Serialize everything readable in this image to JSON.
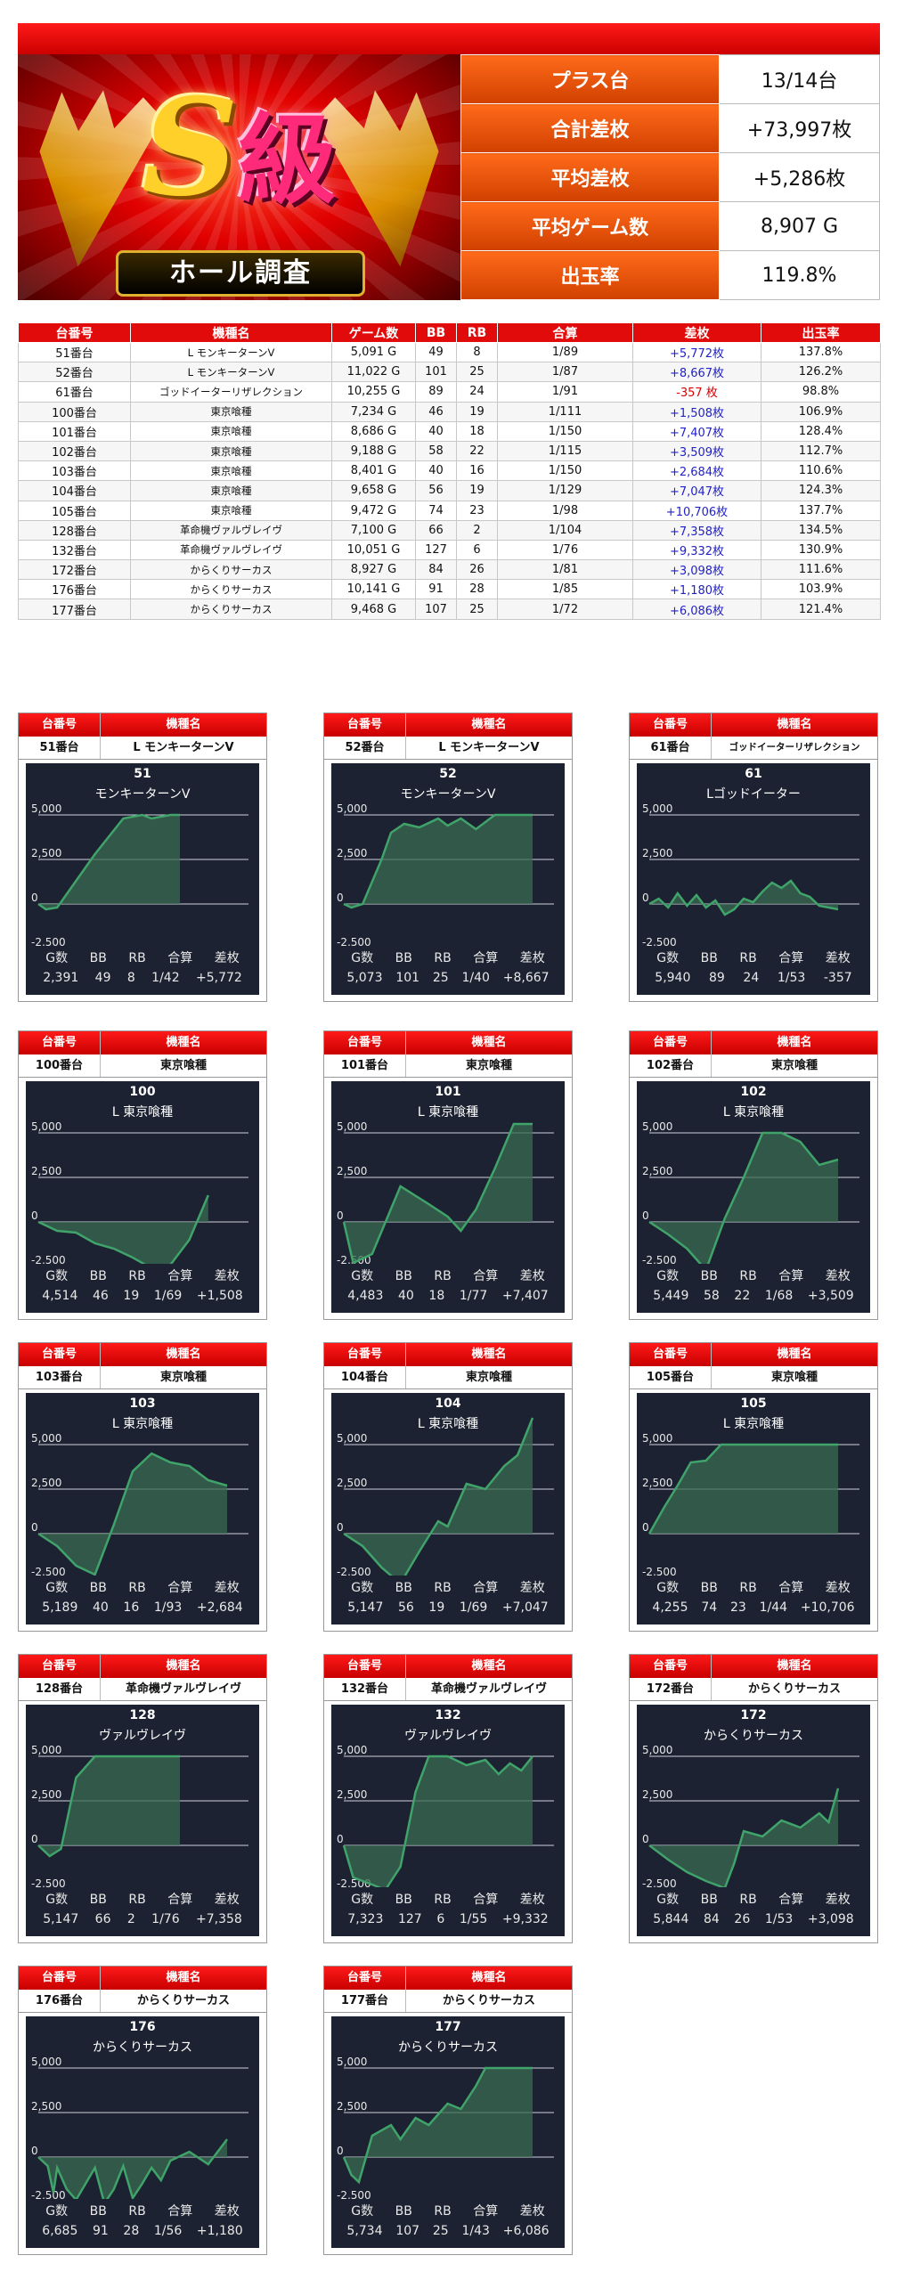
{
  "banner": {
    "s_letter": "S",
    "kyu": "級",
    "ribbon": "ホール調査"
  },
  "summary": [
    {
      "label": "プラス台",
      "value": "13/14台"
    },
    {
      "label": "合計差枚",
      "value": "+73,997枚"
    },
    {
      "label": "平均差枚",
      "value": "+5,286枚"
    },
    {
      "label": "平均ゲーム数",
      "value": "8,907 G"
    },
    {
      "label": "出玉率",
      "value": "119.8%"
    }
  ],
  "table": {
    "headers": [
      "台番号",
      "機種名",
      "ゲーム数",
      "BB",
      "RB",
      "合算",
      "差枚",
      "出玉率"
    ],
    "rows": [
      [
        "51番台",
        "L モンキーターンV",
        "5,091 G",
        "49",
        "8",
        "1/89",
        "+5,772枚",
        "137.8%"
      ],
      [
        "52番台",
        "L モンキーターンV",
        "11,022 G",
        "101",
        "25",
        "1/87",
        "+8,667枚",
        "126.2%"
      ],
      [
        "61番台",
        "ゴッドイーターリザレクション",
        "10,255 G",
        "89",
        "24",
        "1/91",
        "-357 枚",
        "98.8%"
      ],
      [
        "100番台",
        "東京喰種",
        "7,234 G",
        "46",
        "19",
        "1/111",
        "+1,508枚",
        "106.9%"
      ],
      [
        "101番台",
        "東京喰種",
        "8,686 G",
        "40",
        "18",
        "1/150",
        "+7,407枚",
        "128.4%"
      ],
      [
        "102番台",
        "東京喰種",
        "9,188 G",
        "58",
        "22",
        "1/115",
        "+3,509枚",
        "112.7%"
      ],
      [
        "103番台",
        "東京喰種",
        "8,401 G",
        "40",
        "16",
        "1/150",
        "+2,684枚",
        "110.6%"
      ],
      [
        "104番台",
        "東京喰種",
        "9,658 G",
        "56",
        "19",
        "1/129",
        "+7,047枚",
        "124.3%"
      ],
      [
        "105番台",
        "東京喰種",
        "9,472 G",
        "74",
        "23",
        "1/98",
        "+10,706枚",
        "137.7%"
      ],
      [
        "128番台",
        "革命機ヴァルヴレイヴ",
        "7,100 G",
        "66",
        "2",
        "1/104",
        "+7,358枚",
        "134.5%"
      ],
      [
        "132番台",
        "革命機ヴァルヴレイヴ",
        "10,051 G",
        "127",
        "6",
        "1/76",
        "+9,332枚",
        "130.9%"
      ],
      [
        "172番台",
        "からくりサーカス",
        "8,927 G",
        "84",
        "26",
        "1/81",
        "+3,098枚",
        "111.6%"
      ],
      [
        "176番台",
        "からくりサーカス",
        "10,141 G",
        "91",
        "28",
        "1/85",
        "+1,180枚",
        "103.9%"
      ],
      [
        "177番台",
        "からくりサーカス",
        "9,468 G",
        "107",
        "25",
        "1/72",
        "+6,086枚",
        "121.4%"
      ]
    ]
  },
  "card_labels": {
    "number": "台番号",
    "machine": "機種名"
  },
  "graph_labels": [
    "G数",
    "BB",
    "RB",
    "合算",
    "差枚"
  ],
  "graph_axis": [
    "5,000",
    "2,500",
    "0",
    "-2,500"
  ],
  "colors": {
    "red": "#e20b0b",
    "panel": "#1c2231",
    "line": "#3fa36a",
    "fill": "#3a6b52",
    "positive": "#2222cc",
    "negative": "#dd0000"
  },
  "cards": [
    {
      "num": "51番台",
      "machine": "L モンキーターンV",
      "gnum": "51",
      "gname": "モンキーターンV",
      "g": "2,391",
      "bb": "49",
      "rb": "8",
      "total": "1/42",
      "diff": "+5,772",
      "series": [
        [
          0,
          0
        ],
        [
          0.04,
          -300
        ],
        [
          0.1,
          -200
        ],
        [
          0.3,
          2800
        ],
        [
          0.45,
          4800
        ],
        [
          0.55,
          5000
        ],
        [
          0.6,
          4800
        ],
        [
          0.7,
          5000
        ],
        [
          0.75,
          5000
        ]
      ]
    },
    {
      "num": "52番台",
      "machine": "L モンキーターンV",
      "gnum": "52",
      "gname": "モンキーターンV",
      "g": "5,073",
      "bb": "101",
      "rb": "25",
      "total": "1/40",
      "diff": "+8,667",
      "series": [
        [
          0,
          0
        ],
        [
          0.04,
          -200
        ],
        [
          0.1,
          0
        ],
        [
          0.2,
          2500
        ],
        [
          0.25,
          4000
        ],
        [
          0.32,
          4500
        ],
        [
          0.4,
          4300
        ],
        [
          0.5,
          4800
        ],
        [
          0.55,
          4400
        ],
        [
          0.62,
          4800
        ],
        [
          0.7,
          4200
        ],
        [
          0.8,
          5000
        ],
        [
          0.9,
          5000
        ],
        [
          1,
          5000
        ]
      ]
    },
    {
      "num": "61番台",
      "machine": "ゴッドイーターリザレクション",
      "gnum": "61",
      "gname": "Lゴッドイーター",
      "g": "5,940",
      "bb": "89",
      "rb": "24",
      "total": "1/53",
      "diff": "-357",
      "series": [
        [
          0,
          0
        ],
        [
          0.05,
          300
        ],
        [
          0.1,
          -200
        ],
        [
          0.15,
          600
        ],
        [
          0.2,
          -100
        ],
        [
          0.25,
          500
        ],
        [
          0.3,
          -200
        ],
        [
          0.35,
          200
        ],
        [
          0.4,
          -600
        ],
        [
          0.45,
          -300
        ],
        [
          0.5,
          300
        ],
        [
          0.55,
          100
        ],
        [
          0.6,
          700
        ],
        [
          0.65,
          1200
        ],
        [
          0.7,
          900
        ],
        [
          0.75,
          1300
        ],
        [
          0.8,
          600
        ],
        [
          0.85,
          400
        ],
        [
          0.9,
          -100
        ],
        [
          1,
          -300
        ]
      ]
    },
    {
      "num": "100番台",
      "machine": "東京喰種",
      "gnum": "100",
      "gname": "L 東京喰種",
      "g": "4,514",
      "bb": "46",
      "rb": "19",
      "total": "1/69",
      "diff": "+1,508",
      "series": [
        [
          0,
          0
        ],
        [
          0.1,
          -500
        ],
        [
          0.2,
          -600
        ],
        [
          0.3,
          -1200
        ],
        [
          0.4,
          -1500
        ],
        [
          0.5,
          -2000
        ],
        [
          0.6,
          -2600
        ],
        [
          0.7,
          -2400
        ],
        [
          0.8,
          -1000
        ],
        [
          0.9,
          1500
        ]
      ]
    },
    {
      "num": "101番台",
      "machine": "東京喰種",
      "gnum": "101",
      "gname": "L 東京喰種",
      "g": "4,483",
      "bb": "40",
      "rb": "18",
      "total": "1/77",
      "diff": "+7,407",
      "series": [
        [
          0,
          0
        ],
        [
          0.05,
          -2300
        ],
        [
          0.15,
          -1800
        ],
        [
          0.3,
          2000
        ],
        [
          0.45,
          1000
        ],
        [
          0.55,
          300
        ],
        [
          0.62,
          -500
        ],
        [
          0.7,
          700
        ],
        [
          0.8,
          3000
        ],
        [
          0.9,
          5500
        ],
        [
          1,
          5500
        ]
      ]
    },
    {
      "num": "102番台",
      "machine": "東京喰種",
      "gnum": "102",
      "gname": "L 東京喰種",
      "g": "5,449",
      "bb": "58",
      "rb": "22",
      "total": "1/68",
      "diff": "+3,509",
      "series": [
        [
          0,
          0
        ],
        [
          0.1,
          -700
        ],
        [
          0.2,
          -1500
        ],
        [
          0.3,
          -2700
        ],
        [
          0.4,
          200
        ],
        [
          0.5,
          2500
        ],
        [
          0.6,
          5000
        ],
        [
          0.7,
          5000
        ],
        [
          0.8,
          4500
        ],
        [
          0.9,
          3200
        ],
        [
          1,
          3500
        ]
      ]
    },
    {
      "num": "103番台",
      "machine": "東京喰種",
      "gnum": "103",
      "gname": "L 東京喰種",
      "g": "5,189",
      "bb": "40",
      "rb": "16",
      "total": "1/93",
      "diff": "+2,684",
      "series": [
        [
          0,
          0
        ],
        [
          0.1,
          -700
        ],
        [
          0.2,
          -1800
        ],
        [
          0.3,
          -2300
        ],
        [
          0.4,
          500
        ],
        [
          0.5,
          3500
        ],
        [
          0.6,
          4500
        ],
        [
          0.7,
          4000
        ],
        [
          0.8,
          3800
        ],
        [
          0.9,
          3000
        ],
        [
          1,
          2700
        ]
      ]
    },
    {
      "num": "104番台",
      "machine": "東京喰種",
      "gnum": "104",
      "gname": "L 東京喰種",
      "g": "5,147",
      "bb": "56",
      "rb": "19",
      "total": "1/69",
      "diff": "+7,047",
      "series": [
        [
          0,
          0
        ],
        [
          0.1,
          -700
        ],
        [
          0.2,
          -1900
        ],
        [
          0.3,
          -2800
        ],
        [
          0.4,
          -1000
        ],
        [
          0.5,
          700
        ],
        [
          0.55,
          400
        ],
        [
          0.65,
          2800
        ],
        [
          0.75,
          2500
        ],
        [
          0.85,
          3800
        ],
        [
          0.92,
          4400
        ],
        [
          1,
          6500
        ]
      ]
    },
    {
      "num": "105番台",
      "machine": "東京喰種",
      "gnum": "105",
      "gname": "L 東京喰種",
      "g": "4,255",
      "bb": "74",
      "rb": "23",
      "total": "1/44",
      "diff": "+10,706",
      "series": [
        [
          0,
          0
        ],
        [
          0.08,
          1500
        ],
        [
          0.15,
          2700
        ],
        [
          0.22,
          4000
        ],
        [
          0.3,
          4100
        ],
        [
          0.38,
          5000
        ],
        [
          0.5,
          5000
        ],
        [
          0.7,
          5000
        ],
        [
          1,
          5000
        ]
      ]
    },
    {
      "num": "128番台",
      "machine": "革命機ヴァルヴレイヴ",
      "gnum": "128",
      "gname": "ヴァルヴレイヴ",
      "g": "5,147",
      "bb": "66",
      "rb": "2",
      "total": "1/76",
      "diff": "+7,358",
      "series": [
        [
          0,
          0
        ],
        [
          0.06,
          -600
        ],
        [
          0.12,
          -200
        ],
        [
          0.2,
          3800
        ],
        [
          0.3,
          5000
        ],
        [
          0.5,
          5000
        ],
        [
          0.75,
          5000
        ]
      ]
    },
    {
      "num": "132番台",
      "machine": "革命機ヴァルヴレイヴ",
      "gnum": "132",
      "gname": "ヴァルヴレイヴ",
      "g": "7,323",
      "bb": "127",
      "rb": "6",
      "total": "1/55",
      "diff": "+9,332",
      "series": [
        [
          0,
          0
        ],
        [
          0.05,
          -1800
        ],
        [
          0.15,
          -2200
        ],
        [
          0.22,
          -2500
        ],
        [
          0.3,
          -1200
        ],
        [
          0.38,
          3000
        ],
        [
          0.45,
          5000
        ],
        [
          0.55,
          5000
        ],
        [
          0.65,
          4500
        ],
        [
          0.75,
          4800
        ],
        [
          0.82,
          4000
        ],
        [
          0.88,
          4600
        ],
        [
          0.94,
          4200
        ],
        [
          1,
          5000
        ]
      ]
    },
    {
      "num": "172番台",
      "machine": "からくりサーカス",
      "gnum": "172",
      "gname": "からくりサーカス",
      "g": "5,844",
      "bb": "84",
      "rb": "26",
      "total": "1/53",
      "diff": "+3,098",
      "series": [
        [
          0,
          0
        ],
        [
          0.1,
          -800
        ],
        [
          0.2,
          -1500
        ],
        [
          0.3,
          -2000
        ],
        [
          0.4,
          -2400
        ],
        [
          0.45,
          -1000
        ],
        [
          0.5,
          800
        ],
        [
          0.6,
          500
        ],
        [
          0.7,
          1400
        ],
        [
          0.8,
          1000
        ],
        [
          0.9,
          1800
        ],
        [
          0.95,
          1300
        ],
        [
          1,
          3200
        ]
      ]
    },
    {
      "num": "176番台",
      "machine": "からくりサーカス",
      "gnum": "176",
      "gname": "からくりサーカス",
      "g": "6,685",
      "bb": "91",
      "rb": "28",
      "total": "1/56",
      "diff": "+1,180",
      "series": [
        [
          0,
          0
        ],
        [
          0.05,
          -500
        ],
        [
          0.08,
          -2000
        ],
        [
          0.1,
          -600
        ],
        [
          0.15,
          -1800
        ],
        [
          0.2,
          -2400
        ],
        [
          0.25,
          -1500
        ],
        [
          0.3,
          -600
        ],
        [
          0.35,
          -2600
        ],
        [
          0.4,
          -1800
        ],
        [
          0.45,
          -500
        ],
        [
          0.5,
          -2300
        ],
        [
          0.55,
          -1500
        ],
        [
          0.6,
          -600
        ],
        [
          0.65,
          -1300
        ],
        [
          0.7,
          -200
        ],
        [
          0.8,
          300
        ],
        [
          0.9,
          -400
        ],
        [
          1,
          1000
        ]
      ]
    },
    {
      "num": "177番台",
      "machine": "からくりサーカス",
      "gnum": "177",
      "gname": "からくりサーカス",
      "g": "5,734",
      "bb": "107",
      "rb": "25",
      "total": "1/43",
      "diff": "+6,086",
      "series": [
        [
          0,
          0
        ],
        [
          0.04,
          -1000
        ],
        [
          0.08,
          -1400
        ],
        [
          0.15,
          1200
        ],
        [
          0.25,
          1800
        ],
        [
          0.3,
          1000
        ],
        [
          0.38,
          2200
        ],
        [
          0.45,
          1800
        ],
        [
          0.55,
          3000
        ],
        [
          0.62,
          2700
        ],
        [
          0.7,
          4000
        ],
        [
          0.75,
          5000
        ],
        [
          0.85,
          5000
        ],
        [
          1,
          5000
        ]
      ]
    }
  ]
}
